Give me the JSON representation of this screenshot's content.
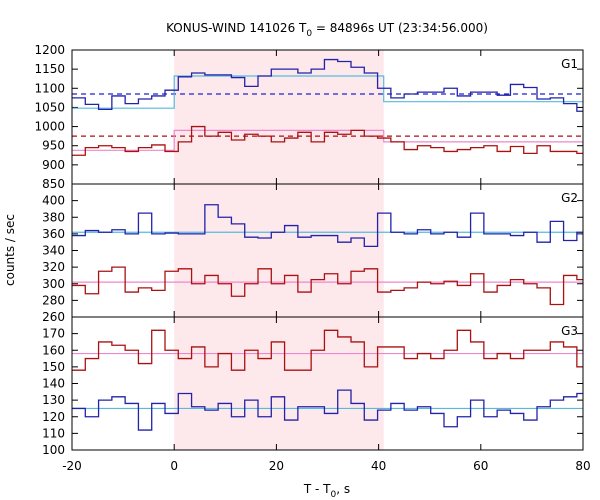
{
  "chart_data": {
    "type": "line",
    "title": "KONUS-WIND 141026 T",
    "title_sub": "0",
    "title_rest": " = 84896s UT (23:34:56.000)",
    "xlabel": "T - T",
    "xlabel_sub": "0",
    "xlabel_rest": ", s",
    "ylabel": "counts / sec",
    "xlim": [
      -20,
      80
    ],
    "x_ticks": [
      -20,
      0,
      20,
      40,
      60,
      80
    ],
    "highlight_interval": [
      0,
      41
    ],
    "bin_edges": [
      -20,
      -17.4,
      -14.8,
      -12.2,
      -9.6,
      -7,
      -4.4,
      -1.8,
      0.8,
      3.4,
      6,
      8.6,
      11.2,
      13.8,
      16.4,
      19,
      21.6,
      24.2,
      26.8,
      29.4,
      32,
      34.6,
      37.2,
      39.8,
      42.4,
      45,
      47.6,
      50.2,
      52.8,
      55.4,
      58,
      60.6,
      63.2,
      65.8,
      68.4,
      71,
      73.6,
      76.2,
      78.8,
      80
    ],
    "panels": [
      {
        "label": "G1",
        "ylim": [
          850,
          1200
        ],
        "y_ticks": [
          850,
          900,
          950,
          1000,
          1050,
          1100,
          1150,
          1200
        ],
        "series": [
          {
            "color": "#2222aa",
            "values": [
              1075,
              1058,
              1045,
              1080,
              1060,
              1072,
              1080,
              1095,
              1130,
              1140,
              1135,
              1135,
              1128,
              1105,
              1132,
              1150,
              1150,
              1140,
              1150,
              1175,
              1170,
              1155,
              1140,
              1100,
              1075,
              1085,
              1090,
              1090,
              1100,
              1080,
              1090,
              1090,
              1082,
              1110,
              1102,
              1072,
              1075,
              1060,
              1040
            ]
          },
          {
            "color": "#aa1111",
            "values": [
              925,
              945,
              950,
              945,
              935,
              945,
              952,
              935,
              960,
              1000,
              975,
              985,
              965,
              980,
              975,
              960,
              970,
              985,
              960,
              985,
              980,
              990,
              975,
              970,
              960,
              940,
              950,
              945,
              935,
              940,
              945,
              950,
              935,
              948,
              930,
              950,
              935,
              935,
              930
            ]
          }
        ],
        "steps": [
          {
            "color": "#55bbdd",
            "x": [
              -20,
              0,
              0,
              41,
              41,
              80
            ],
            "y": [
              1048,
              1048,
              1132,
              1132,
              1065,
              1065
            ]
          },
          {
            "color": "#ee88cc",
            "x": [
              -20,
              0,
              0,
              41,
              41,
              80
            ],
            "y": [
              938,
              938,
              990,
              990,
              960,
              960
            ]
          }
        ],
        "hlines": [
          {
            "color": "#2222cc",
            "y": 1085
          },
          {
            "color": "#aa1111",
            "y": 975
          }
        ]
      },
      {
        "label": "G2",
        "ylim": [
          260,
          420
        ],
        "y_ticks": [
          260,
          280,
          300,
          320,
          340,
          360,
          380,
          400
        ],
        "series": [
          {
            "color": "#2222aa",
            "values": [
              358,
              364,
              362,
              365,
              360,
              385,
              360,
              361,
              360,
              360,
              395,
              380,
              372,
              356,
              355,
              362,
              370,
              356,
              358,
              358,
              350,
              355,
              345,
              385,
              362,
              360,
              365,
              360,
              362,
              356,
              385,
              360,
              360,
              358,
              362,
              350,
              375,
              352,
              362
            ]
          },
          {
            "color": "#aa1111",
            "values": [
              298,
              288,
              315,
              320,
              290,
              295,
              292,
              315,
              318,
              300,
              310,
              300,
              285,
              300,
              318,
              300,
              310,
              290,
              305,
              312,
              300,
              315,
              318,
              290,
              292,
              295,
              302,
              300,
              303,
              298,
              312,
              290,
              298,
              305,
              300,
              295,
              275,
              310,
              305
            ]
          }
        ],
        "steps": [
          {
            "color": "#55bbdd",
            "x": [
              -20,
              80
            ],
            "y": [
              362,
              362
            ]
          },
          {
            "color": "#ee88cc",
            "x": [
              -20,
              80
            ],
            "y": [
              302,
              302
            ]
          }
        ],
        "hlines": []
      },
      {
        "label": "G3",
        "ylim": [
          100,
          180
        ],
        "y_ticks": [
          100,
          110,
          120,
          130,
          140,
          150,
          160,
          170,
          180
        ],
        "series": [
          {
            "color": "#aa1111",
            "values": [
              148,
              155,
              165,
              163,
              160,
              152,
              172,
              160,
              155,
              162,
              150,
              158,
              148,
              160,
              155,
              165,
              148,
              148,
              160,
              172,
              168,
              165,
              150,
              162,
              162,
              155,
              158,
              155,
              160,
              172,
              165,
              155,
              158,
              155,
              160,
              160,
              165,
              162,
              150
            ]
          },
          {
            "color": "#2222aa",
            "values": [
              125,
              120,
              130,
              132,
              128,
              112,
              128,
              122,
              134,
              126,
              124,
              128,
              120,
              130,
              120,
              132,
              118,
              126,
              126,
              122,
              136,
              128,
              118,
              124,
              128,
              124,
              126,
              122,
              114,
              120,
              130,
              120,
              124,
              122,
              118,
              126,
              130,
              132,
              134
            ]
          }
        ],
        "steps": [
          {
            "color": "#ee88cc",
            "x": [
              -20,
              80
            ],
            "y": [
              158,
              158
            ]
          },
          {
            "color": "#55bbdd",
            "x": [
              -20,
              80
            ],
            "y": [
              125,
              125
            ]
          }
        ],
        "hlines": []
      }
    ]
  }
}
